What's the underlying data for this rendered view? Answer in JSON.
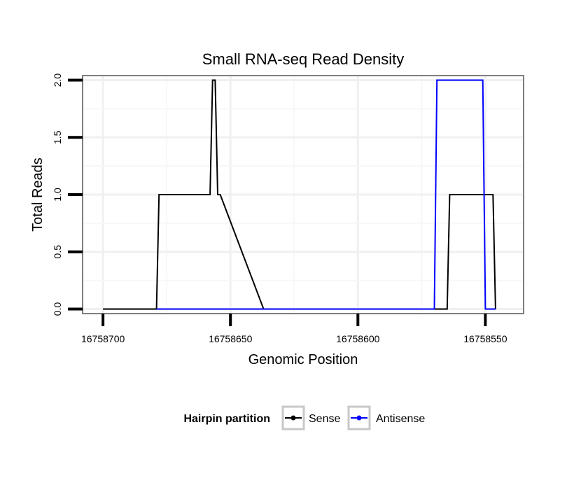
{
  "chart_data": {
    "type": "line",
    "title": "Small RNA-seq Read Density",
    "xlabel": "Genomic Position",
    "ylabel": "Total Reads",
    "x_reversed": true,
    "xlim": [
      16758708,
      16758535
    ],
    "ylim": [
      -0.04,
      2.04
    ],
    "x_ticks": [
      16758700,
      16758650,
      16758600,
      16758550
    ],
    "x_tick_labels": [
      "16758700",
      "16758650",
      "16758600",
      "16758550"
    ],
    "y_ticks": [
      0,
      0.5,
      1,
      1.5,
      2
    ],
    "y_tick_labels": [
      "0.0",
      "0.5",
      "1.0",
      "1.5",
      "2.0"
    ],
    "series": [
      {
        "name": "Sense",
        "color": "#000000",
        "x": [
          16758700,
          16758679,
          16758678,
          16758658,
          16758657,
          16758656,
          16758655,
          16758654,
          16758637,
          16758636,
          16758565,
          16758564,
          16758547,
          16758546
        ],
        "y": [
          0,
          0,
          1,
          1,
          2,
          2,
          1,
          1,
          0,
          0,
          0,
          1,
          1,
          0
        ]
      },
      {
        "name": "Antisense",
        "color": "#0000ff",
        "x": [
          16758679,
          16758570,
          16758569,
          16758551,
          16758550,
          16758546
        ],
        "y": [
          0,
          0,
          2,
          2,
          0,
          0
        ]
      }
    ],
    "legend": {
      "title": "Hairpin partition",
      "position": "bottom",
      "entries": [
        "Sense",
        "Antisense"
      ]
    }
  }
}
